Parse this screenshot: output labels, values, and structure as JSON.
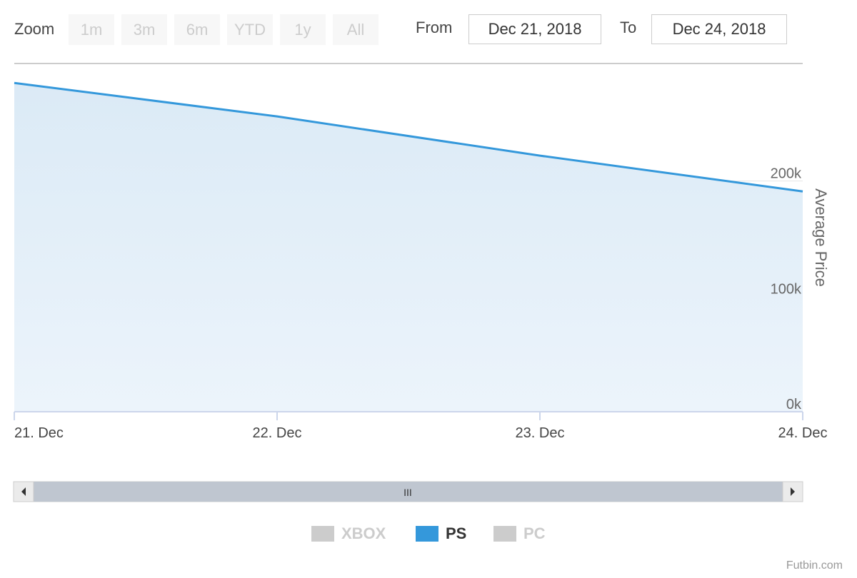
{
  "range_selector": {
    "zoom_label": "Zoom",
    "buttons": [
      "1m",
      "3m",
      "6m",
      "YTD",
      "1y",
      "All"
    ],
    "from_label": "From",
    "from_value": "Dec 21, 2018",
    "to_label": "To",
    "to_value": "Dec 24, 2018"
  },
  "navigator": {
    "handle_label": "III"
  },
  "legend": [
    {
      "name": "XBOX",
      "color": "#cccccc",
      "visible": false
    },
    {
      "name": "PS",
      "color": "#3498db",
      "visible": true
    },
    {
      "name": "PC",
      "color": "#cccccc",
      "visible": false
    }
  ],
  "credit": "Futbin.com",
  "chart_data": {
    "type": "area",
    "title": "",
    "xlabel": "",
    "ylabel": "Average Price",
    "categories": [
      "21. Dec",
      "22. Dec",
      "23. Dec",
      "24. Dec"
    ],
    "series": [
      {
        "name": "PS",
        "values": [
          285000,
          256000,
          222000,
          191000
        ],
        "color": "#3498db"
      }
    ],
    "yticks": [
      0,
      100000,
      200000
    ],
    "ytick_labels": [
      "0k",
      "100k",
      "200k"
    ],
    "ylim": [
      0,
      300000
    ],
    "grid": true
  }
}
